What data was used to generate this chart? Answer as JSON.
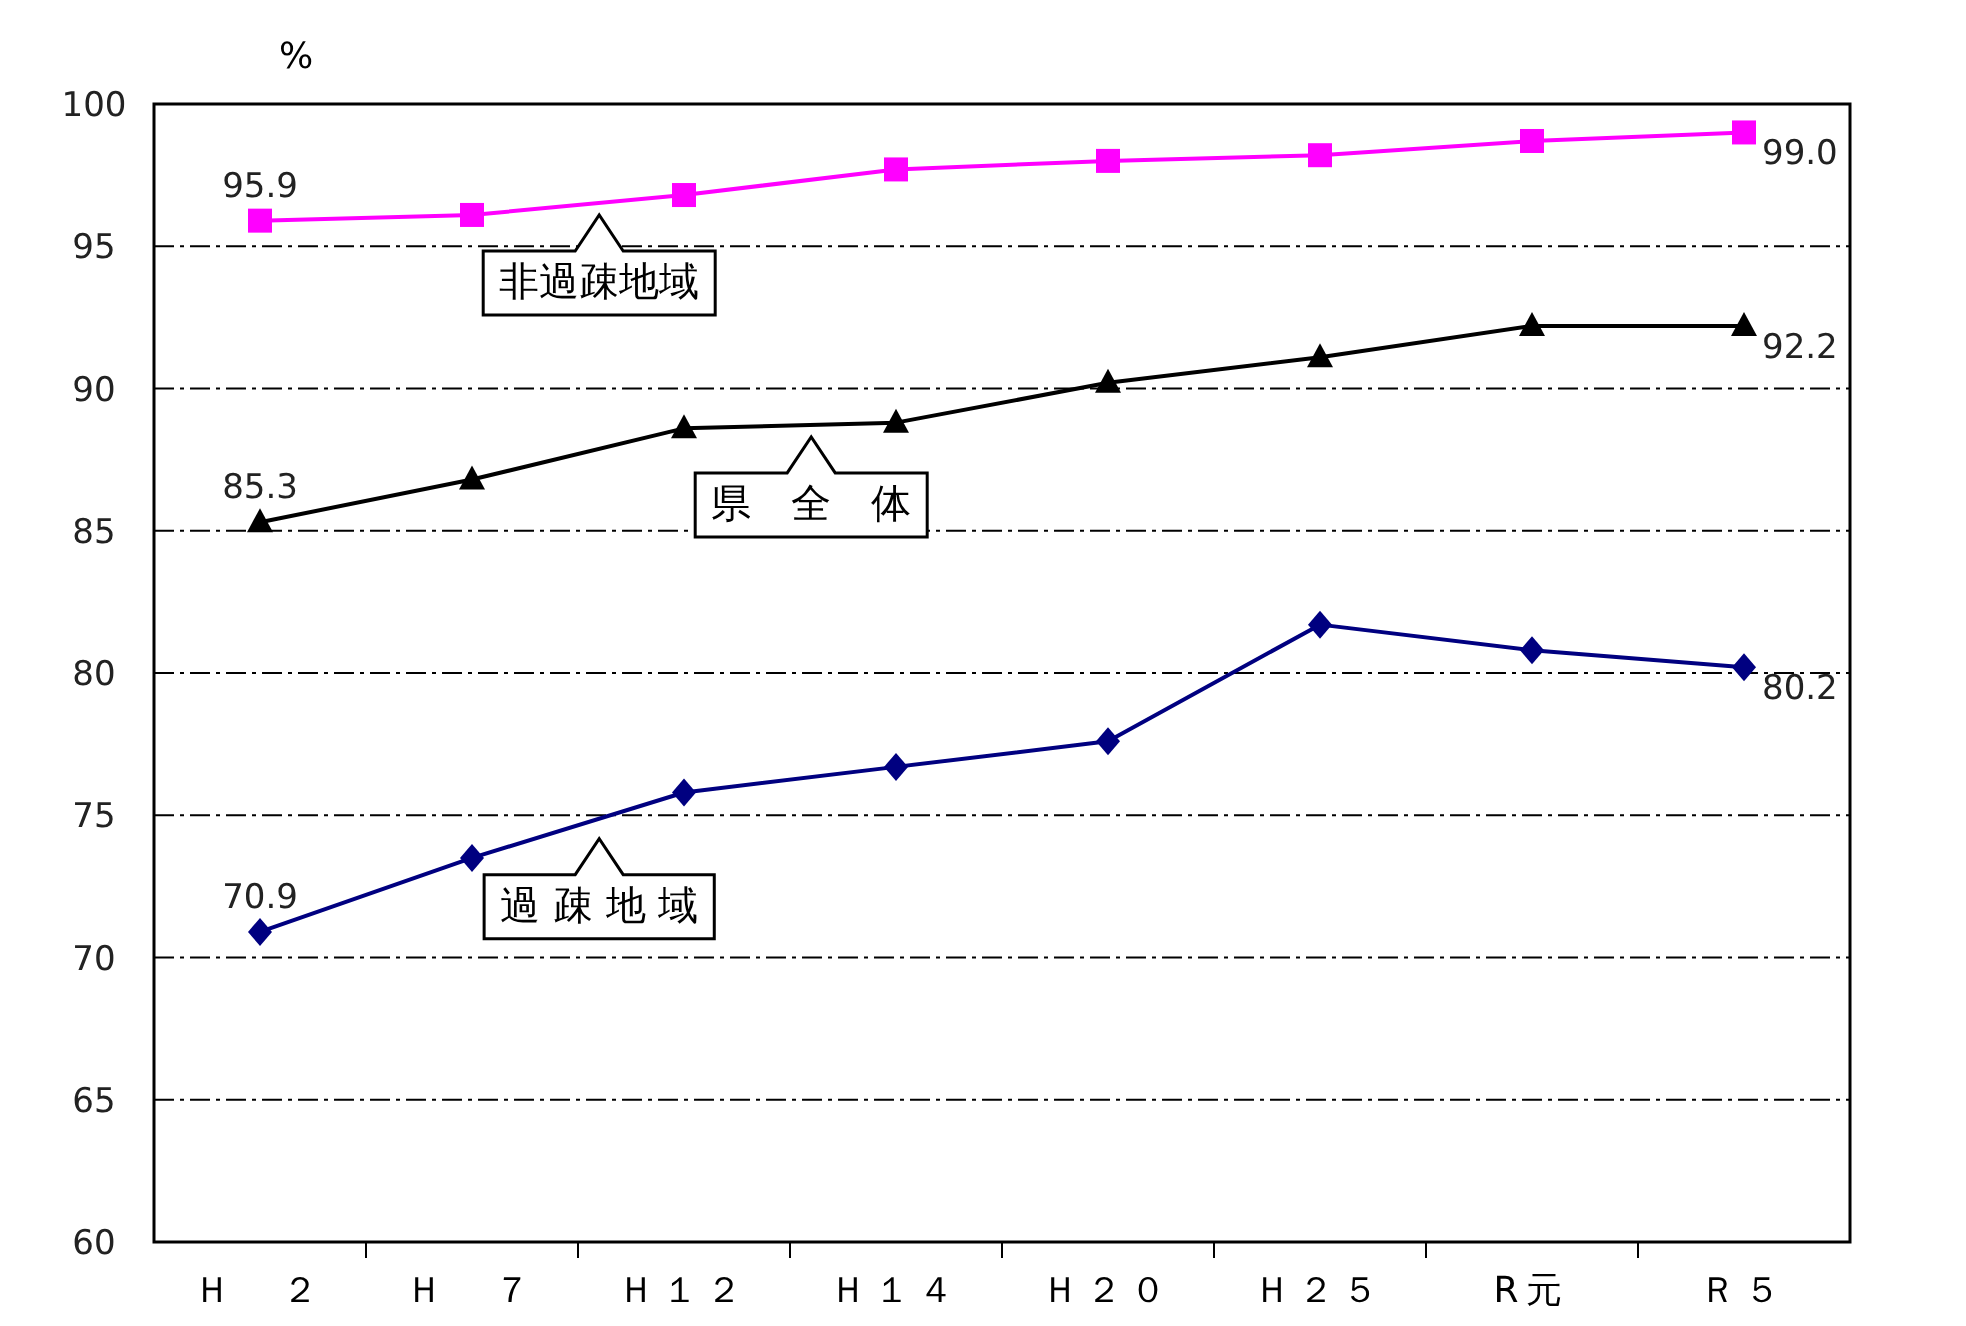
{
  "chart_data": {
    "type": "line",
    "ylabel": "%",
    "categories": [
      "Ｈ　２",
      "Ｈ　７",
      "Ｈ１２",
      "Ｈ１４",
      "Ｈ２０",
      "Ｈ２５",
      "R元",
      "Ｒ５"
    ],
    "ylim": [
      60,
      100
    ],
    "yticks": [
      60,
      65,
      70,
      75,
      80,
      85,
      90,
      95,
      100
    ],
    "grid": "y",
    "line_style": "solid",
    "series": [
      {
        "name": "非過疎地域",
        "color": "#ff00ff",
        "marker": "square",
        "values": [
          95.9,
          96.1,
          96.8,
          97.7,
          98.0,
          98.2,
          98.7,
          99.0
        ],
        "value_labels": [
          "95.9",
          null,
          null,
          null,
          null,
          null,
          null,
          "99.0"
        ]
      },
      {
        "name": "県　全　体",
        "color": "#000000",
        "marker": "triangle",
        "values": [
          85.3,
          86.8,
          88.6,
          88.8,
          90.2,
          91.1,
          92.2,
          92.2
        ],
        "value_labels": [
          "85.3",
          null,
          null,
          null,
          null,
          null,
          null,
          "92.2"
        ]
      },
      {
        "name": "過 疎 地 域",
        "color": "#000080",
        "marker": "diamond",
        "values": [
          70.9,
          73.5,
          75.8,
          76.7,
          77.6,
          81.7,
          80.8,
          80.2
        ],
        "value_labels": [
          "70.9",
          null,
          null,
          null,
          null,
          null,
          null,
          "80.2"
        ]
      }
    ]
  }
}
